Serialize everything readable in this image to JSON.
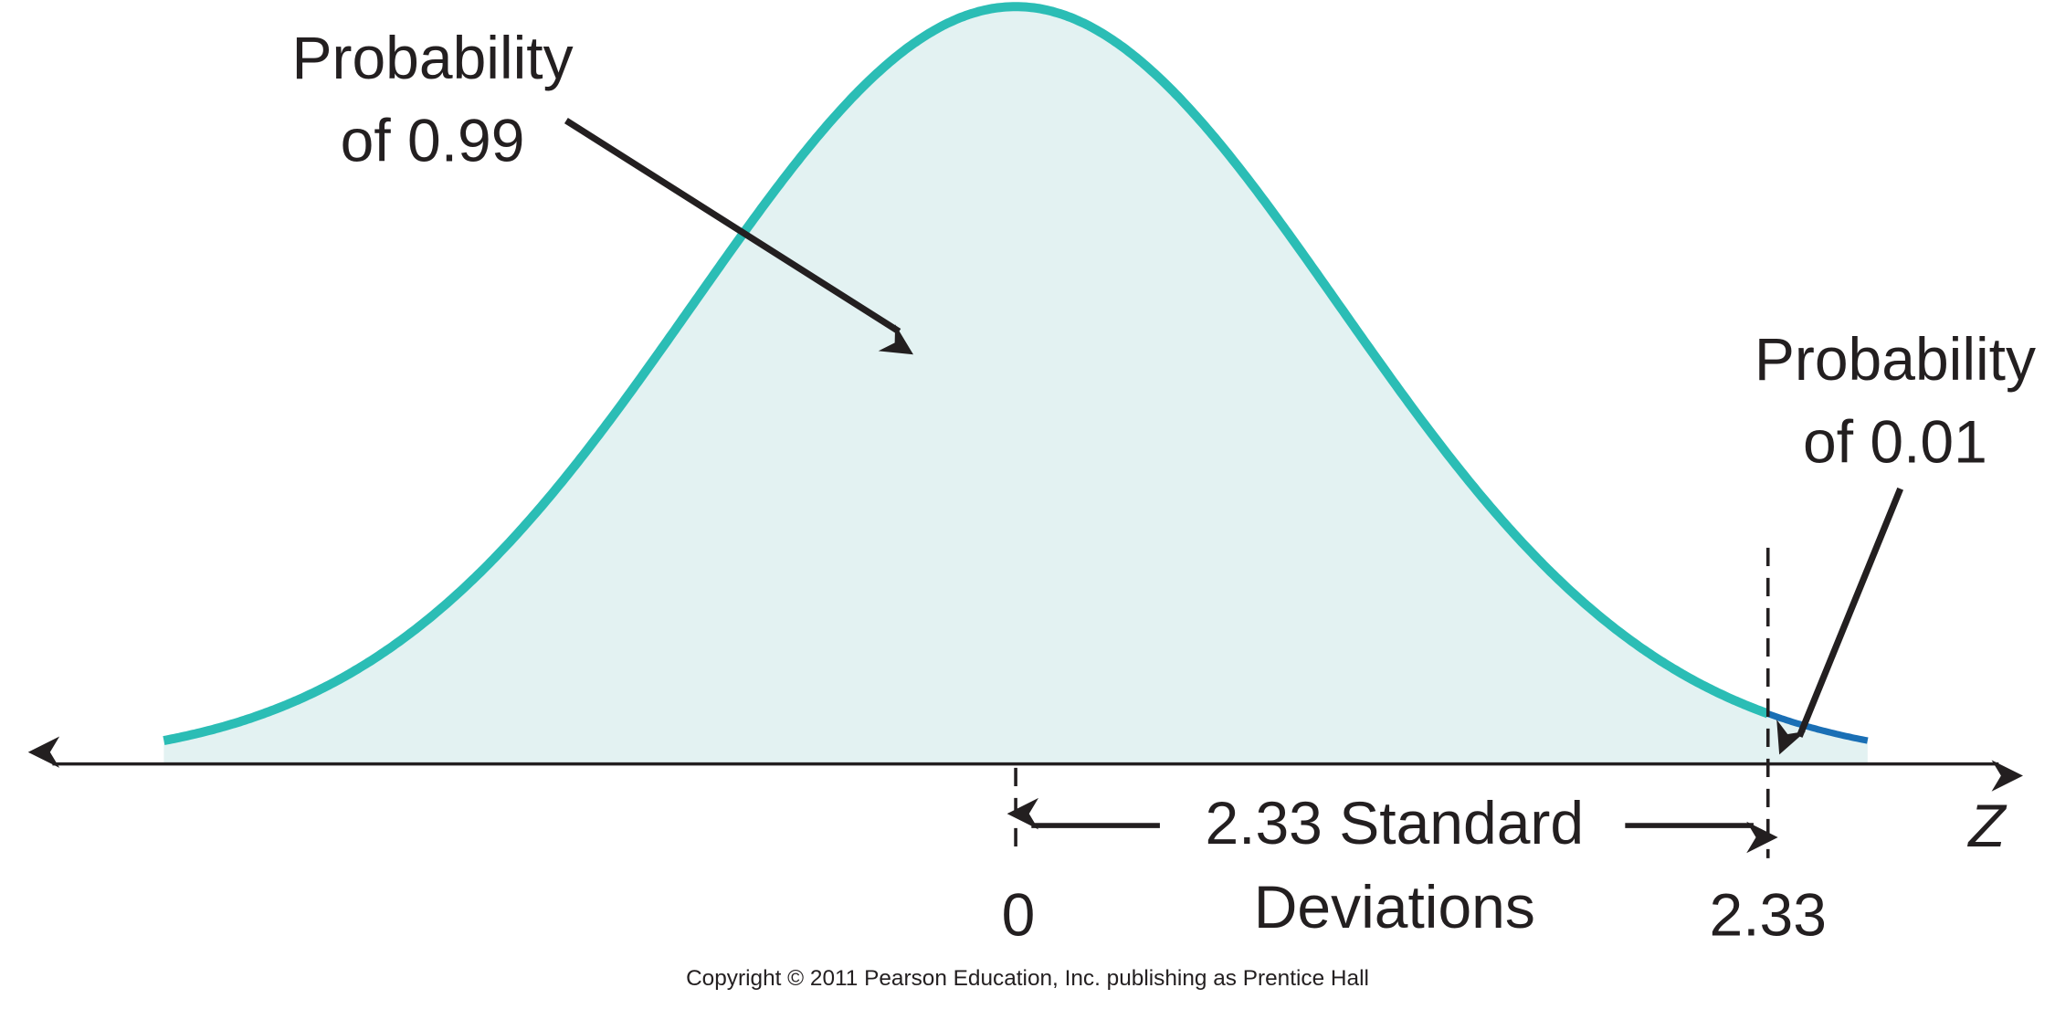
{
  "annotations": {
    "left": [
      "Probability",
      "of 0.99"
    ],
    "right": [
      "Probability",
      "of 0.01"
    ]
  },
  "span_label": [
    "2.33 Standard",
    "Deviations"
  ],
  "ticks": [
    "0",
    "2.33"
  ],
  "axis_label": "Z",
  "copyright": "Copyright © 2011 Pearson Education, Inc. publishing as Prentice Hall"
}
